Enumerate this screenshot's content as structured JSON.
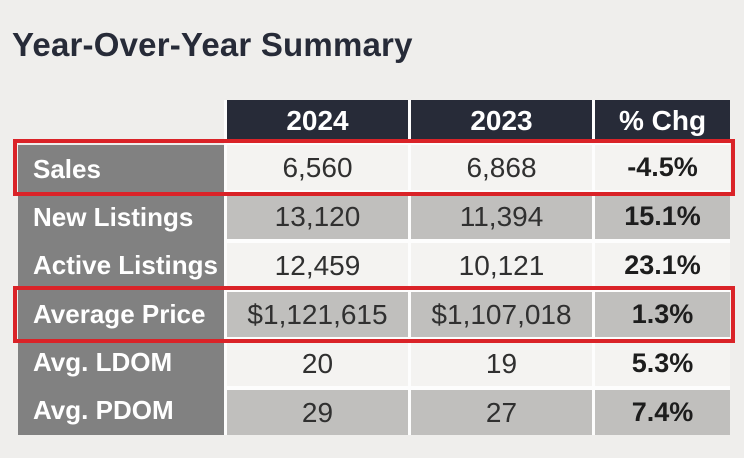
{
  "chart_data": {
    "type": "table",
    "title": "Year-Over-Year Summary",
    "columns": [
      "2024",
      "2023",
      "% Chg"
    ],
    "rows": [
      {
        "label": "Sales",
        "values": [
          "6,560",
          "6,868",
          "-4.5%"
        ],
        "highlighted": true
      },
      {
        "label": "New Listings",
        "values": [
          "13,120",
          "11,394",
          "15.1%"
        ],
        "highlighted": false
      },
      {
        "label": "Active Listings",
        "values": [
          "12,459",
          "10,121",
          "23.1%"
        ],
        "highlighted": false
      },
      {
        "label": "Average Price",
        "values": [
          "$1,121,615",
          "$1,107,018",
          "1.3%"
        ],
        "highlighted": true
      },
      {
        "label": "Avg. LDOM",
        "values": [
          "20",
          "19",
          "5.3%"
        ],
        "highlighted": false
      },
      {
        "label": "Avg. PDOM",
        "values": [
          "29",
          "27",
          "7.4%"
        ],
        "highlighted": false
      }
    ],
    "highlighted_rows": [
      "Sales",
      "Average Price"
    ],
    "layout_hints": {
      "header_position": "top",
      "label_column_position": "left",
      "value_alignment": "center",
      "row_striping": "light-dark alternating starting light"
    },
    "colors": {
      "page_background": "#efeeec",
      "title_text": "#272b38",
      "header_background": "#272b38",
      "header_text": "#ffffff",
      "label_column_background": "#818181",
      "label_text": "#ffffff",
      "row_light_background": "#f4f3f1",
      "row_dark_background": "#c0bfbd",
      "value_text": "#303030",
      "pct_chg_text": "#1d1d1d",
      "highlight_border": "#da2328"
    }
  }
}
